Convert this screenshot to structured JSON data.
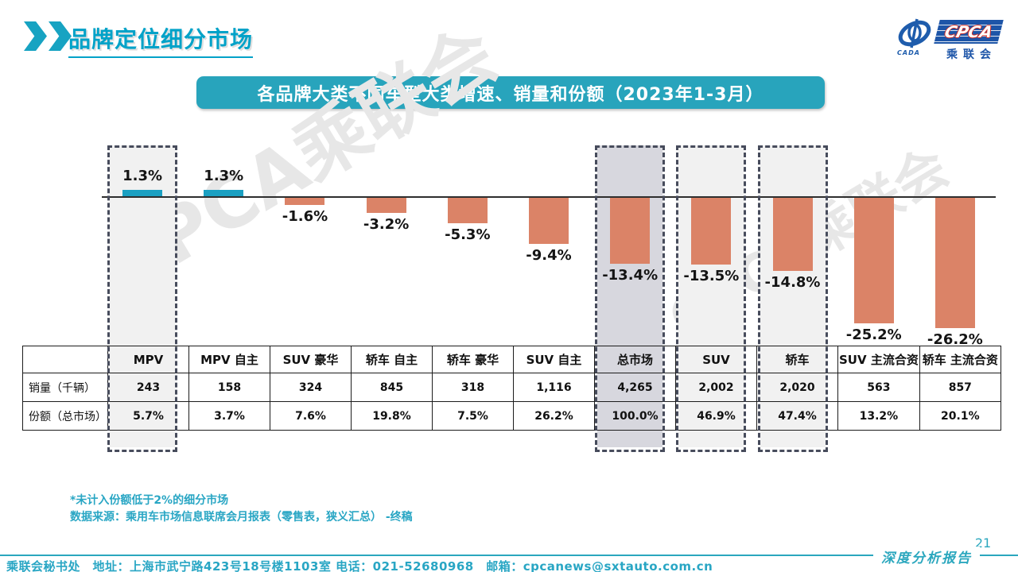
{
  "slide": {
    "title": "品牌定位细分市场",
    "page_number": "21",
    "report_type": "深度分析报告",
    "footer_contact": "乘联会秘书处　地址：上海市武宁路423号18号楼1103室 电话：021-52680968　邮箱：cpcanews@sxtauto.com.cn",
    "watermark": "CPCA乘联会"
  },
  "logo": {
    "cada_label": "CADA",
    "cpca_label": "CPCA",
    "cjk_label": "乘联会"
  },
  "banner": {
    "title": "各品牌大类不同车型大类增速、销量和份额（2023年1-3月）"
  },
  "notes": {
    "line1": "*未计入份额低于2%的细分市场",
    "line2": "数据来源：乘用车市场信息联席会月报表（零售表，狭义汇总） -终稿"
  },
  "colors": {
    "teal_bar": "#1BA0C2",
    "orange_bar": "#DB8367",
    "highlight_light": "#F1F1F1",
    "highlight_dark": "#D7D7DE",
    "dash_border": "#474C5C",
    "accent_teal": "#2BA7BE"
  },
  "chart_data": {
    "type": "bar",
    "title": "各品牌大类不同车型大类增速、销量和份额（2023年1-3月）",
    "categories": [
      "MPV",
      "MPV 自主",
      "SUV 豪华",
      "轿车 自主",
      "轿车 豪华",
      "SUV 自主",
      "总市场",
      "SUV",
      "轿车",
      "SUV 主流合资",
      "轿车 主流合资"
    ],
    "values": [
      1.3,
      1.3,
      -1.6,
      -3.2,
      -5.3,
      -9.4,
      -13.4,
      -13.5,
      -14.8,
      -25.2,
      -26.2
    ],
    "value_labels": [
      "1.3%",
      "1.3%",
      "-1.6%",
      "-3.2%",
      "-5.3%",
      "-9.4%",
      "-13.4%",
      "-13.5%",
      "-14.8%",
      "-25.2%",
      "-26.2%"
    ],
    "highlighted_columns": [
      0,
      6,
      7,
      8
    ],
    "dark_highlight_column": 6,
    "ylabel": "",
    "xlabel": "",
    "grid": false,
    "legend": false,
    "table": {
      "row_headers": [
        "销量（千辆）",
        "份额（总市场）"
      ],
      "rows": [
        [
          "243",
          "158",
          "324",
          "845",
          "318",
          "1,116",
          "4,265",
          "2,002",
          "2,020",
          "563",
          "857"
        ],
        [
          "5.7%",
          "3.7%",
          "7.6%",
          "19.8%",
          "7.5%",
          "26.2%",
          "100.0%",
          "46.9%",
          "47.4%",
          "13.2%",
          "20.1%"
        ]
      ]
    }
  }
}
